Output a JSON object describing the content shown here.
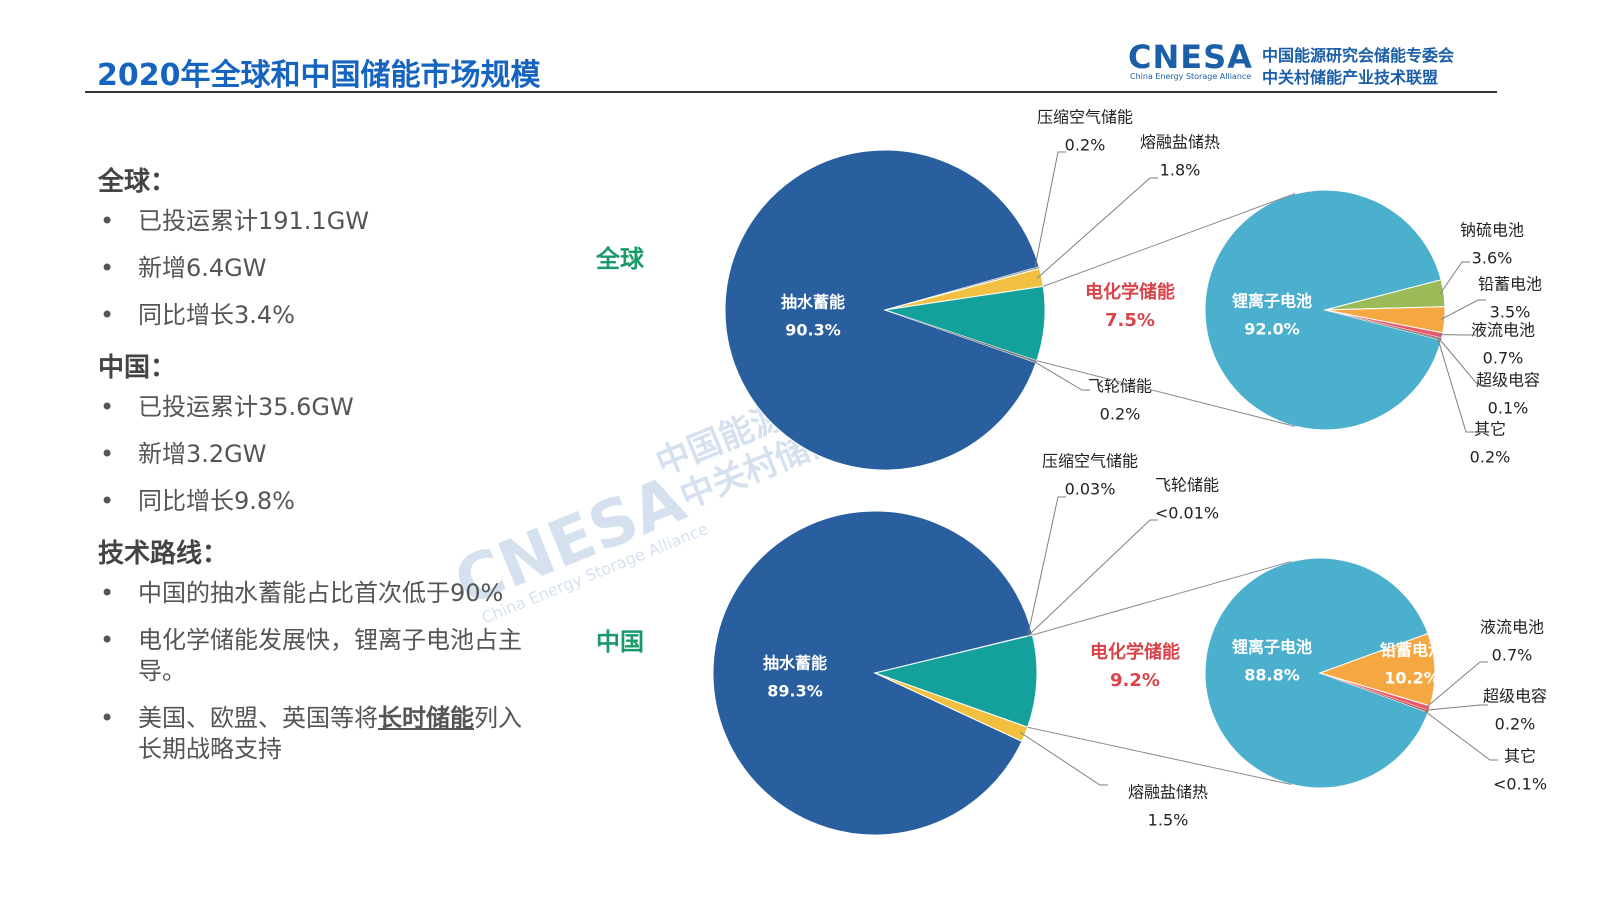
{
  "header": {
    "title": "2020年全球和中国储能市场规模",
    "logo_mark": "CNESA",
    "logo_line1": "中国能源研究会储能专委会",
    "logo_line2": "中关村储能产业技术联盟",
    "logo_en": "China Energy Storage Alliance"
  },
  "sections": [
    {
      "heading": "全球：",
      "bullets": [
        [
          "已投运累计191.1GW"
        ],
        [
          "新增6.4GW"
        ],
        [
          "同比增长3.4%"
        ]
      ]
    },
    {
      "heading": "中国：",
      "bullets": [
        [
          "已投运累计35.6GW"
        ],
        [
          "新增3.2GW"
        ],
        [
          "同比增长9.8%"
        ]
      ]
    },
    {
      "heading": "技术路线：",
      "bullets": [
        [
          "中国的抽水蓄能占比首次低于90%"
        ],
        [
          "电化学储能发展快，锂离子电池占主导。"
        ],
        [
          "美国、欧盟、英国等将",
          "长时储能",
          "列入长期战略支持"
        ]
      ]
    }
  ],
  "watermark": {
    "mark": "CNESA",
    "line1": "中国能源研究会储能专委会",
    "line2": "中关村储能产业技术联盟",
    "en": "China Energy Storage Alliance"
  },
  "chart_data": [
    {
      "type": "pie",
      "title": "全球",
      "categories": [
        "抽水蓄能",
        "压缩空气储能",
        "熔融盐储热",
        "电化学储能",
        "飞轮储能"
      ],
      "values": [
        90.3,
        0.2,
        1.8,
        7.5,
        0.2
      ],
      "value_labels": [
        "90.3%",
        "0.2%",
        "1.8%",
        "7.5%",
        "0.2%"
      ],
      "colors": [
        "#2a5f9f",
        "#a5a5a5",
        "#f2c040",
        "#14a19c",
        "#7f7f7f"
      ]
    },
    {
      "type": "pie",
      "categories": [
        "锂离子电池",
        "钠硫电池",
        "铅蓄电池",
        "液流电池",
        "超级电容",
        "其它"
      ],
      "values": [
        92.0,
        3.6,
        3.5,
        0.7,
        0.1,
        0.2
      ],
      "value_labels": [
        "92.0%",
        "3.6%",
        "3.5%",
        "0.7%",
        "0.1%",
        "0.2%"
      ],
      "colors": [
        "#4bb0cd",
        "#9bbb59",
        "#f5a742",
        "#e8596b",
        "#c0504d",
        "#8c8c8c"
      ]
    },
    {
      "type": "pie",
      "title": "中国",
      "categories": [
        "抽水蓄能",
        "压缩空气储能",
        "飞轮储能",
        "电化学储能",
        "熔融盐储热"
      ],
      "values": [
        89.3,
        0.03,
        0.005,
        9.2,
        1.5
      ],
      "value_labels": [
        "89.3%",
        "0.03%",
        "<0.01%",
        "9.2%",
        "1.5%"
      ],
      "colors": [
        "#2a5f9f",
        "#a5a5a5",
        "#7f7f7f",
        "#14a19c",
        "#f2c040"
      ]
    },
    {
      "type": "pie",
      "categories": [
        "锂离子电池",
        "铅蓄电池",
        "液流电池",
        "超级电容",
        "其它"
      ],
      "values": [
        88.8,
        10.2,
        0.7,
        0.2,
        0.05
      ],
      "value_labels": [
        "88.8%",
        "10.2%",
        "0.7%",
        "0.2%",
        "<0.1%"
      ],
      "colors": [
        "#4bb0cd",
        "#f5a742",
        "#e8596b",
        "#c0504d",
        "#8c8c8c"
      ]
    }
  ]
}
